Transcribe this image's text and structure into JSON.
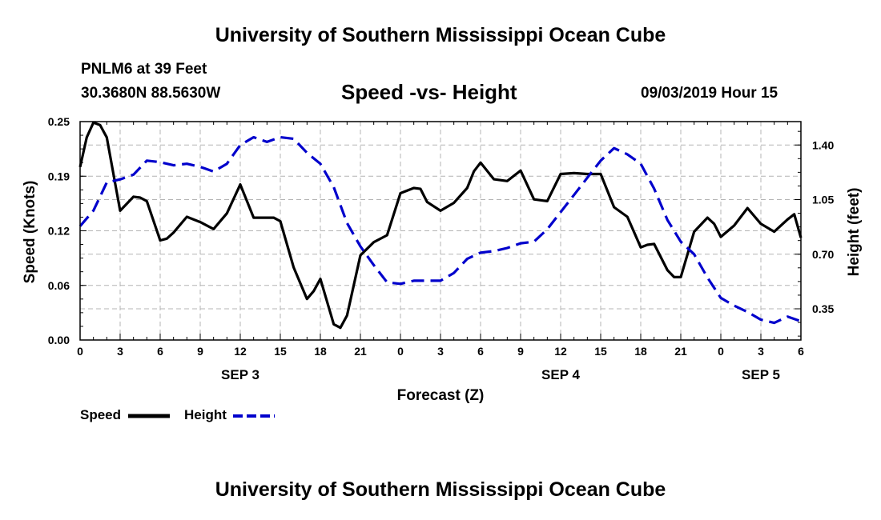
{
  "header": {
    "title": "University of Southern Mississippi Ocean Cube",
    "station": "PNLM6 at 39 Feet",
    "coords": "30.3680N 88.5630W",
    "datetime": "09/03/2019 Hour 15",
    "footer_title": "University of Southern Mississippi Ocean Cube"
  },
  "legend": {
    "speed_label": "Speed",
    "height_label": "Height"
  },
  "colors": {
    "speed": "#000000",
    "height": "#0000cc",
    "grid": "#b4b4b4"
  },
  "chart_data": {
    "type": "line",
    "title": "Speed -vs- Height",
    "xlabel": "Forecast (Z)",
    "ylabel": "Speed (Knots)",
    "y2label": "Height (feet)",
    "xlim": [
      0,
      54
    ],
    "ylim": [
      0,
      0.25
    ],
    "y2lim": [
      0.15,
      1.55
    ],
    "x_ticks": [
      "0",
      "3",
      "6",
      "9",
      "12",
      "15",
      "18",
      "21",
      "0",
      "3",
      "6",
      "9",
      "12",
      "15",
      "18",
      "21",
      "0",
      "3",
      "6"
    ],
    "y_ticks": [
      "0.00",
      "0.06",
      "0.12",
      "0.19",
      "0.25"
    ],
    "y_tick_values": [
      0,
      0.0625,
      0.125,
      0.1875,
      0.25
    ],
    "y2_ticks": [
      "0.35",
      "0.70",
      "1.05",
      "1.40"
    ],
    "y2_tick_values": [
      0.35,
      0.7,
      1.05,
      1.4
    ],
    "date_labels": [
      {
        "label": "SEP 3",
        "x": 12
      },
      {
        "label": "SEP 4",
        "x": 36
      },
      {
        "label": "SEP 5",
        "x": 51
      }
    ],
    "grid": true,
    "series": [
      {
        "name": "Speed",
        "axis": "left",
        "style": "solid",
        "x": [
          0,
          0.5,
          1,
          1.5,
          2,
          3,
          4,
          4.5,
          5,
          6,
          6.5,
          7,
          8,
          9,
          10,
          11,
          12,
          13,
          14,
          14.5,
          15,
          16,
          17,
          17.5,
          18,
          19,
          19.5,
          20,
          21,
          22,
          23,
          24,
          25,
          25.5,
          26,
          27,
          28,
          29,
          29.5,
          30,
          31,
          32,
          33,
          34,
          35,
          36,
          37,
          38,
          39,
          40,
          41,
          42,
          42.5,
          43,
          44,
          44.5,
          45,
          46,
          47,
          47.5,
          48,
          49,
          50,
          51,
          52,
          53,
          53.5,
          54
        ],
        "values": [
          0.198,
          0.232,
          0.249,
          0.246,
          0.232,
          0.148,
          0.164,
          0.163,
          0.159,
          0.114,
          0.116,
          0.123,
          0.141,
          0.135,
          0.127,
          0.145,
          0.178,
          0.14,
          0.14,
          0.14,
          0.136,
          0.083,
          0.047,
          0.056,
          0.07,
          0.018,
          0.014,
          0.028,
          0.097,
          0.112,
          0.12,
          0.168,
          0.174,
          0.173,
          0.158,
          0.148,
          0.157,
          0.174,
          0.193,
          0.203,
          0.184,
          0.182,
          0.194,
          0.161,
          0.159,
          0.19,
          0.191,
          0.19,
          0.19,
          0.152,
          0.141,
          0.106,
          0.109,
          0.11,
          0.08,
          0.072,
          0.072,
          0.124,
          0.14,
          0.133,
          0.118,
          0.131,
          0.151,
          0.133,
          0.124,
          0.138,
          0.144,
          0.117
        ]
      },
      {
        "name": "Height",
        "axis": "right",
        "style": "dashed",
        "x": [
          0,
          1,
          2,
          3,
          4,
          5,
          6,
          7,
          8,
          9,
          10,
          11,
          12,
          13,
          14,
          15,
          16,
          17,
          18,
          19,
          20,
          21,
          22,
          23,
          24,
          25,
          26,
          27,
          28,
          29,
          30,
          31,
          32,
          33,
          34,
          35,
          36,
          37,
          38,
          39,
          40,
          41,
          42,
          43,
          44,
          45,
          46,
          47,
          48,
          49,
          50,
          51,
          52,
          53,
          54
        ],
        "values": [
          0.88,
          0.98,
          1.16,
          1.18,
          1.21,
          1.3,
          1.29,
          1.27,
          1.28,
          1.26,
          1.23,
          1.28,
          1.4,
          1.45,
          1.42,
          1.45,
          1.44,
          1.35,
          1.28,
          1.13,
          0.9,
          0.75,
          0.63,
          0.52,
          0.51,
          0.53,
          0.53,
          0.53,
          0.58,
          0.67,
          0.71,
          0.72,
          0.74,
          0.77,
          0.78,
          0.86,
          0.97,
          1.08,
          1.19,
          1.3,
          1.38,
          1.34,
          1.28,
          1.12,
          0.92,
          0.78,
          0.7,
          0.55,
          0.42,
          0.37,
          0.33,
          0.28,
          0.26,
          0.3,
          0.27
        ]
      }
    ]
  }
}
